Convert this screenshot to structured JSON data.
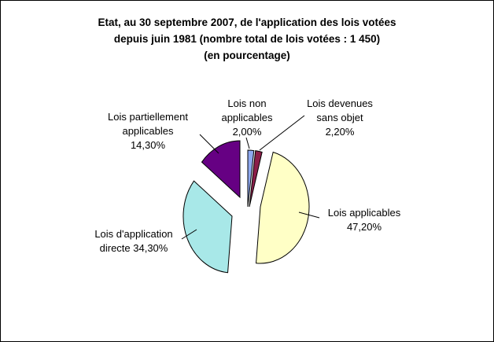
{
  "chart_data": {
    "type": "pie",
    "title_lines": [
      "Etat, au 30 septembre 2007, de l'application des lois votées",
      "depuis juin 1981 (nombre total de lois votées : 1 450)",
      "(en pourcentage)"
    ],
    "slices": [
      {
        "label_lines": [
          "Lois  non",
          "applicables",
          "2,00%"
        ],
        "value": 2.0,
        "color": "#8EA9F0"
      },
      {
        "label_lines": [
          "Lois devenues",
          "sans objet",
          "2,20%"
        ],
        "value": 2.2,
        "color": "#8B1E49"
      },
      {
        "label_lines": [
          "Lois applicables",
          "47,20%"
        ],
        "value": 47.2,
        "color": "#FFFFC6"
      },
      {
        "label_lines": [
          "Lois d'application",
          "directe 34,30%"
        ],
        "value": 34.3,
        "color": "#A8E8E8"
      },
      {
        "label_lines": [
          "Lois partiellement",
          "applicables",
          "14,30%"
        ],
        "value": 14.3,
        "color": "#660083"
      }
    ]
  }
}
